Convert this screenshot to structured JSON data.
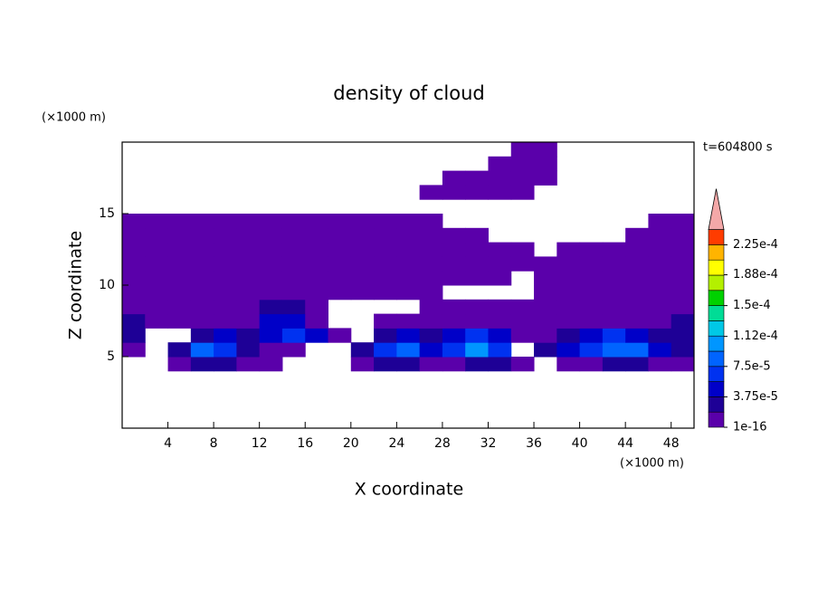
{
  "chart_data": {
    "type": "contour",
    "title": "density of cloud",
    "x_label": "X coordinate",
    "y_label": "Z coordinate",
    "x_unit": "(×1000 m)",
    "y_unit": "(×1000 m)",
    "annotation": "t=604800 s",
    "xlim": [
      0,
      50
    ],
    "ylim": [
      0,
      20
    ],
    "xticks": [
      4,
      8,
      12,
      16,
      20,
      24,
      28,
      32,
      36,
      40,
      44,
      48
    ],
    "yticks": [
      5,
      10,
      15
    ],
    "x": [
      1,
      3,
      5,
      7,
      9,
      11,
      13,
      15,
      17,
      19,
      21,
      23,
      25,
      27,
      29,
      31,
      33,
      35,
      37,
      39,
      41,
      43,
      45,
      47,
      49
    ],
    "y": [
      0.5,
      1.5,
      2.5,
      3.5,
      4.5,
      5.5,
      6.5,
      7.5,
      8.5,
      9.5,
      10.5,
      11.5,
      12.5,
      13.5,
      14.5,
      15.5,
      16.5,
      17.5,
      18.5,
      19.5
    ],
    "z": [
      [
        null,
        null,
        null,
        null,
        null,
        null,
        null,
        null,
        null,
        null,
        null,
        null,
        null,
        null,
        null,
        null,
        null,
        null,
        null,
        null,
        null,
        null,
        null,
        null,
        null
      ],
      [
        null,
        null,
        null,
        null,
        null,
        null,
        null,
        null,
        null,
        null,
        null,
        null,
        null,
        null,
        null,
        null,
        null,
        null,
        null,
        null,
        null,
        null,
        null,
        null,
        null
      ],
      [
        null,
        null,
        null,
        null,
        null,
        null,
        null,
        null,
        null,
        null,
        null,
        null,
        null,
        null,
        null,
        null,
        null,
        null,
        null,
        null,
        null,
        null,
        null,
        null,
        null
      ],
      [
        null,
        null,
        null,
        null,
        null,
        null,
        null,
        null,
        null,
        null,
        null,
        null,
        null,
        null,
        null,
        null,
        null,
        null,
        null,
        null,
        null,
        null,
        null,
        null,
        null
      ],
      [
        null,
        null,
        1e-06,
        2e-05,
        2e-05,
        1e-06,
        1e-06,
        null,
        null,
        null,
        1e-06,
        2e-05,
        2e-05,
        1e-06,
        1e-06,
        2e-05,
        2e-05,
        1e-06,
        null,
        1e-06,
        1e-06,
        2e-05,
        2e-05,
        1e-06,
        1e-06
      ],
      [
        1e-06,
        null,
        2e-05,
        8e-05,
        6e-05,
        2e-05,
        1e-06,
        1e-06,
        null,
        null,
        2e-05,
        6e-05,
        8e-05,
        4e-05,
        6e-05,
        0.0001,
        6e-05,
        null,
        2e-05,
        4e-05,
        6e-05,
        8e-05,
        8e-05,
        4e-05,
        2e-05
      ],
      [
        2e-05,
        null,
        null,
        2e-05,
        4e-05,
        2e-05,
        4e-05,
        6e-05,
        4e-05,
        1e-06,
        null,
        2e-05,
        4e-05,
        2e-05,
        4e-05,
        6e-05,
        4e-05,
        1e-06,
        1e-06,
        2e-05,
        4e-05,
        6e-05,
        4e-05,
        2e-05,
        2e-05
      ],
      [
        2e-05,
        1e-06,
        1e-06,
        1e-06,
        1e-06,
        1e-06,
        4e-05,
        4e-05,
        1e-06,
        null,
        null,
        1e-06,
        1e-06,
        1e-06,
        1e-06,
        1e-06,
        1e-06,
        1e-06,
        1e-06,
        1e-06,
        1e-06,
        1e-06,
        1e-06,
        1e-06,
        2e-05
      ],
      [
        1e-06,
        1e-06,
        1e-06,
        1e-06,
        1e-06,
        1e-06,
        2e-05,
        2e-05,
        1e-06,
        null,
        null,
        null,
        null,
        1e-06,
        1e-06,
        1e-06,
        1e-06,
        1e-06,
        1e-06,
        1e-06,
        1e-06,
        1e-06,
        1e-06,
        1e-06,
        1e-06
      ],
      [
        1e-06,
        1e-06,
        1e-06,
        1e-06,
        1e-06,
        1e-06,
        1e-06,
        1e-06,
        1e-06,
        1e-06,
        1e-06,
        1e-06,
        1e-06,
        1e-06,
        null,
        null,
        null,
        null,
        1e-06,
        1e-06,
        1e-06,
        1e-06,
        1e-06,
        1e-06,
        1e-06
      ],
      [
        1e-06,
        1e-06,
        1e-06,
        1e-06,
        1e-06,
        1e-06,
        1e-06,
        1e-06,
        1e-06,
        1e-06,
        1e-06,
        1e-06,
        1e-06,
        1e-06,
        1e-06,
        1e-06,
        1e-06,
        null,
        1e-06,
        1e-06,
        1e-06,
        1e-06,
        1e-06,
        1e-06,
        1e-06
      ],
      [
        1e-06,
        1e-06,
        1e-06,
        1e-06,
        1e-06,
        1e-06,
        1e-06,
        1e-06,
        1e-06,
        1e-06,
        1e-06,
        1e-06,
        1e-06,
        1e-06,
        1e-06,
        1e-06,
        1e-06,
        1e-06,
        1e-06,
        1e-06,
        1e-06,
        1e-06,
        1e-06,
        1e-06,
        1e-06
      ],
      [
        1e-06,
        1e-06,
        1e-06,
        1e-06,
        1e-06,
        1e-06,
        1e-06,
        1e-06,
        1e-06,
        1e-06,
        1e-06,
        1e-06,
        1e-06,
        1e-06,
        1e-06,
        1e-06,
        1e-06,
        1e-06,
        null,
        1e-06,
        1e-06,
        1e-06,
        1e-06,
        1e-06,
        1e-06
      ],
      [
        1e-06,
        1e-06,
        1e-06,
        1e-06,
        1e-06,
        1e-06,
        1e-06,
        1e-06,
        1e-06,
        1e-06,
        1e-06,
        1e-06,
        1e-06,
        1e-06,
        1e-06,
        1e-06,
        null,
        null,
        null,
        null,
        null,
        null,
        1e-06,
        1e-06,
        1e-06
      ],
      [
        1e-06,
        1e-06,
        1e-06,
        1e-06,
        1e-06,
        1e-06,
        1e-06,
        1e-06,
        1e-06,
        1e-06,
        1e-06,
        1e-06,
        1e-06,
        1e-06,
        null,
        null,
        null,
        null,
        null,
        null,
        null,
        null,
        null,
        1e-06,
        1e-06
      ],
      [
        null,
        null,
        null,
        null,
        null,
        null,
        null,
        null,
        null,
        null,
        null,
        null,
        null,
        null,
        null,
        null,
        null,
        null,
        null,
        null,
        null,
        null,
        null,
        null,
        null
      ],
      [
        null,
        null,
        null,
        null,
        null,
        null,
        null,
        null,
        null,
        null,
        null,
        null,
        null,
        1e-06,
        1e-06,
        1e-06,
        1e-06,
        1e-06,
        null,
        null,
        null,
        null,
        null,
        null,
        null
      ],
      [
        null,
        null,
        null,
        null,
        null,
        null,
        null,
        null,
        null,
        null,
        null,
        null,
        null,
        null,
        1e-06,
        1e-06,
        1e-06,
        1e-06,
        1e-06,
        null,
        null,
        null,
        null,
        null,
        null
      ],
      [
        null,
        null,
        null,
        null,
        null,
        null,
        null,
        null,
        null,
        null,
        null,
        null,
        null,
        null,
        null,
        null,
        1e-06,
        1e-06,
        1e-06,
        null,
        null,
        null,
        null,
        null,
        null
      ],
      [
        null,
        null,
        null,
        null,
        null,
        null,
        null,
        null,
        null,
        null,
        null,
        null,
        null,
        null,
        null,
        null,
        null,
        1e-06,
        1e-06,
        null,
        null,
        null,
        null,
        null,
        null
      ]
    ],
    "levels": [
      1e-16,
      1.875e-05,
      3.75e-05,
      5.625e-05,
      7.5e-05,
      9.375e-05,
      0.0001125,
      0.00013125,
      0.00015,
      0.00016875,
      0.0001875,
      0.00020625,
      0.000225,
      0.00024375
    ],
    "colors": [
      "#5a00aa",
      "#1e0096",
      "#0000c8",
      "#0032f0",
      "#0064ff",
      "#0096ff",
      "#00c8e6",
      "#00dc96",
      "#00d200",
      "#b4f000",
      "#ffff00",
      "#ffb400",
      "#ff3c00"
    ],
    "extend_color": "#f4a8a8",
    "colorbar_ticks": [
      1e-16,
      {
        "value": 3.75e-05,
        "label": "3.75e-5"
      },
      {
        "value": 7.5e-05,
        "label": "7.5e-5"
      },
      {
        "value": 0.000112,
        "label": "1.12e-4"
      },
      {
        "value": 0.00015,
        "label": "1.5e-4"
      },
      {
        "value": 0.000188,
        "label": "1.88e-4"
      },
      {
        "value": 0.000225,
        "label": "2.25e-4"
      }
    ]
  }
}
